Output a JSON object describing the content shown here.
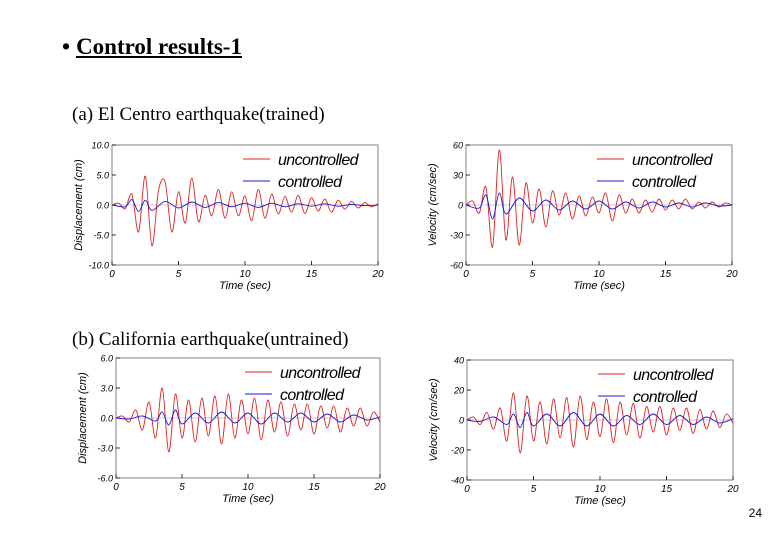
{
  "slide": {
    "bullet": "•",
    "title": "Control results-1",
    "caption_a": "(a) El Centro earthquake(trained)",
    "caption_b": "(b) California earthquake(untrained)",
    "page_number": "24"
  },
  "colors": {
    "uncontrolled": "#e02020",
    "controlled": "#1a1ad0"
  },
  "chart_data": [
    {
      "type": "line",
      "xlabel": "Time (sec)",
      "ylabel": "Displacement (cm)",
      "xlim": [
        0,
        20
      ],
      "ylim": [
        -10,
        10
      ],
      "xticks": [
        0,
        5,
        10,
        15,
        20
      ],
      "yticks": [
        -10.0,
        -5.0,
        0.0,
        5.0,
        10.0
      ],
      "ytick_labels": [
        "-10.0",
        "-5.0",
        "0.0",
        "5.0",
        "10.0"
      ],
      "legend_position": "top-right",
      "series": [
        {
          "name": "uncontrolled",
          "x": [
            0,
            0.5,
            1,
            1.5,
            2,
            2.5,
            3,
            3.5,
            4,
            4.5,
            5,
            5.5,
            6,
            6.5,
            7,
            7.5,
            8,
            8.5,
            9,
            9.5,
            10,
            10.5,
            11,
            11.5,
            12,
            12.5,
            13,
            13.5,
            14,
            14.5,
            15,
            15.5,
            16,
            16.5,
            17,
            17.5,
            18,
            18.5,
            19,
            19.5,
            20
          ],
          "y": [
            0,
            0.3,
            -0.6,
            1.8,
            -4.5,
            4.8,
            -6.8,
            2.5,
            3.8,
            -4.5,
            2.2,
            -3,
            4.5,
            -2.8,
            1.6,
            -1.8,
            2.6,
            -2.2,
            2.2,
            -1.8,
            1.5,
            -2.6,
            2.6,
            -2.2,
            1.8,
            -1.5,
            1.4,
            -1.2,
            1.6,
            -1.4,
            1.2,
            -1,
            1,
            -1.2,
            0.8,
            -0.7,
            0.6,
            -0.5,
            0.4,
            -0.3,
            0.2
          ]
        },
        {
          "name": "controlled",
          "x": [
            0,
            1,
            1.5,
            2,
            2.5,
            3,
            4,
            5,
            6,
            7,
            8,
            9,
            10,
            11,
            12,
            13,
            14,
            15,
            16,
            17,
            18,
            19,
            20
          ],
          "y": [
            0,
            -0.3,
            0.9,
            -1.1,
            0.8,
            -0.9,
            0.6,
            -0.5,
            0.5,
            -0.4,
            0.4,
            -0.3,
            0.3,
            -0.4,
            0.3,
            -0.3,
            0.2,
            -0.2,
            0.2,
            -0.2,
            0.1,
            -0.1,
            0
          ]
        }
      ]
    },
    {
      "type": "line",
      "xlabel": "Time (sec)",
      "ylabel": "Velocity (cm/sec)",
      "xlim": [
        0,
        20
      ],
      "ylim": [
        -60,
        60
      ],
      "xticks": [
        0,
        5,
        10,
        15,
        20
      ],
      "yticks": [
        -60,
        -30,
        0,
        30,
        60
      ],
      "ytick_labels": [
        "-60",
        "-30",
        "0",
        "30",
        "60"
      ],
      "legend_position": "top-right",
      "series": [
        {
          "name": "uncontrolled",
          "x": [
            0,
            0.5,
            1,
            1.5,
            2,
            2.5,
            3,
            3.5,
            4,
            4.5,
            5,
            5.5,
            6,
            6.5,
            7,
            7.5,
            8,
            8.5,
            9,
            9.5,
            10,
            10.5,
            11,
            11.5,
            12,
            12.5,
            13,
            13.5,
            14,
            14.5,
            15,
            15.5,
            16,
            16.5,
            17,
            17.5,
            18,
            18.5,
            19,
            19.5,
            20
          ],
          "y": [
            0,
            4,
            -8,
            18,
            -42,
            55,
            -35,
            28,
            -40,
            22,
            -18,
            16,
            -22,
            14,
            -10,
            12,
            -14,
            9,
            -11,
            8,
            -8,
            12,
            -16,
            10,
            -8,
            6,
            -8,
            5,
            -7,
            6,
            -5,
            5,
            -4,
            6,
            -4,
            3,
            -3,
            3,
            -2,
            2,
            0
          ]
        },
        {
          "name": "controlled",
          "x": [
            0,
            1,
            1.5,
            2,
            2.5,
            3,
            4,
            5,
            6,
            7,
            8,
            9,
            10,
            11,
            12,
            13,
            14,
            15,
            16,
            17,
            18,
            19,
            20
          ],
          "y": [
            0,
            -3,
            10,
            -14,
            12,
            -9,
            7,
            -6,
            5,
            -5,
            4,
            -4,
            4,
            -4,
            3,
            -3,
            3,
            -2,
            2,
            -2,
            2,
            -1,
            0
          ]
        }
      ]
    },
    {
      "type": "line",
      "xlabel": "Time (sec)",
      "ylabel": "Displacement (cm)",
      "xlim": [
        0,
        20
      ],
      "ylim": [
        -6,
        6
      ],
      "xticks": [
        0,
        5,
        10,
        15,
        20
      ],
      "yticks": [
        -6.0,
        -3.0,
        0.0,
        3.0,
        6.0
      ],
      "ytick_labels": [
        "-6.0",
        "-3.0",
        "0.0",
        "3.0",
        "6.0"
      ],
      "legend_position": "top-right",
      "series": [
        {
          "name": "uncontrolled",
          "x": [
            0,
            0.5,
            1,
            1.5,
            2,
            2.5,
            3,
            3.5,
            4,
            4.5,
            5,
            5.5,
            6,
            6.5,
            7,
            7.5,
            8,
            8.5,
            9,
            9.5,
            10,
            10.5,
            11,
            11.5,
            12,
            12.5,
            13,
            13.5,
            14,
            14.5,
            15,
            15.5,
            16,
            16.5,
            17,
            17.5,
            18,
            18.5,
            19,
            19.5,
            20
          ],
          "y": [
            0,
            0.2,
            -0.4,
            0.8,
            -1.2,
            1.6,
            -2,
            3,
            -3.4,
            2.4,
            -2,
            1.8,
            -2.4,
            2,
            -1.8,
            2.2,
            -2.6,
            2.4,
            -2,
            1.8,
            -1.6,
            2,
            -2.2,
            1.8,
            -1.4,
            1.6,
            -1.8,
            1.4,
            -1.2,
            1.4,
            -1.6,
            1.2,
            -1,
            1.2,
            -1.4,
            1,
            -0.8,
            1,
            -0.8,
            0.6,
            -0.4
          ]
        },
        {
          "name": "controlled",
          "x": [
            0,
            1,
            2,
            3,
            3.5,
            4,
            4.5,
            5,
            6,
            7,
            8,
            9,
            10,
            11,
            12,
            13,
            14,
            15,
            16,
            17,
            18,
            19,
            20
          ],
          "y": [
            0,
            -0.1,
            0.2,
            -0.3,
            0.6,
            -0.7,
            0.8,
            -0.6,
            0.5,
            -0.5,
            0.6,
            -0.5,
            0.5,
            -0.6,
            0.5,
            -0.4,
            0.5,
            -0.4,
            0.4,
            -0.4,
            0.3,
            -0.2,
            0.1
          ]
        }
      ]
    },
    {
      "type": "line",
      "xlabel": "Time (sec)",
      "ylabel": "Velocity (cm/sec)",
      "xlim": [
        0,
        20
      ],
      "ylim": [
        -40,
        40
      ],
      "xticks": [
        0,
        5,
        10,
        15,
        20
      ],
      "yticks": [
        -40,
        -20,
        0,
        20,
        40
      ],
      "ytick_labels": [
        "-40",
        "-20",
        "0",
        "20",
        "40"
      ],
      "legend_position": "top-right",
      "series": [
        {
          "name": "uncontrolled",
          "x": [
            0,
            0.5,
            1,
            1.5,
            2,
            2.5,
            3,
            3.5,
            4,
            4.5,
            5,
            5.5,
            6,
            6.5,
            7,
            7.5,
            8,
            8.5,
            9,
            9.5,
            10,
            10.5,
            11,
            11.5,
            12,
            12.5,
            13,
            13.5,
            14,
            14.5,
            15,
            15.5,
            16,
            16.5,
            17,
            17.5,
            18,
            18.5,
            19,
            19.5,
            20
          ],
          "y": [
            0,
            2,
            -3,
            5,
            -6,
            8,
            -14,
            18,
            -22,
            16,
            -14,
            12,
            -16,
            14,
            -12,
            15,
            -18,
            16,
            -13,
            12,
            -11,
            14,
            -15,
            12,
            -10,
            11,
            -12,
            9,
            -8,
            9,
            -10,
            8,
            -7,
            8,
            -9,
            7,
            -6,
            6,
            -5,
            4,
            -2
          ]
        },
        {
          "name": "controlled",
          "x": [
            0,
            1,
            2,
            3,
            3.5,
            4,
            4.5,
            5,
            6,
            7,
            8,
            9,
            10,
            11,
            12,
            13,
            14,
            15,
            16,
            17,
            18,
            19,
            20
          ],
          "y": [
            0,
            -1,
            2,
            -3,
            4,
            -5,
            5,
            -4,
            4,
            -4,
            5,
            -4,
            4,
            -4,
            3,
            -3,
            4,
            -3,
            3,
            -3,
            2,
            -2,
            1
          ]
        }
      ]
    }
  ]
}
